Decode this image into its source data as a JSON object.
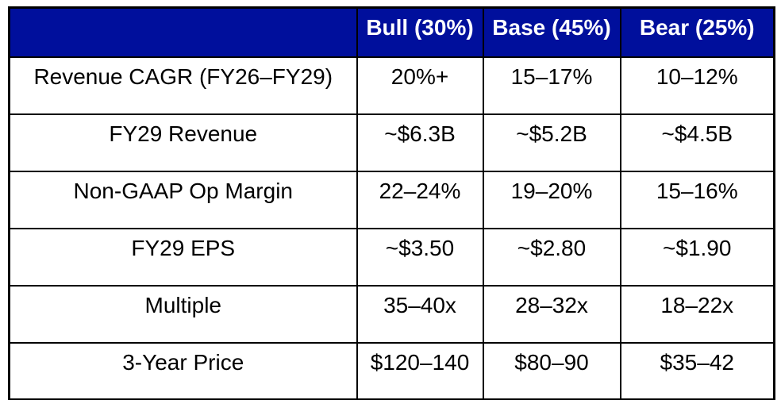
{
  "table": {
    "title": "Scenario valuation table",
    "colors": {
      "header_bg": "#000f9c",
      "header_text": "#ffffff",
      "border": "#000000",
      "body_text": "#000000",
      "page_bg": "#ffffff"
    },
    "header": {
      "corner": "",
      "columns": [
        "Bull (30%)",
        "Base (45%)",
        "Bear (25%)"
      ]
    },
    "rows": [
      {
        "label": "Revenue CAGR (FY26–FY29)",
        "values": [
          "20%+",
          "15–17%",
          "10–12%"
        ]
      },
      {
        "label": "FY29 Revenue",
        "values": [
          "~$6.3B",
          "~$5.2B",
          "~$4.5B"
        ]
      },
      {
        "label": "Non-GAAP Op Margin",
        "values": [
          "22–24%",
          "19–20%",
          "15–16%"
        ]
      },
      {
        "label": "FY29 EPS",
        "values": [
          "~$3.50",
          "~$2.80",
          "~$1.90"
        ]
      },
      {
        "label": "Multiple",
        "values": [
          "35–40x",
          "28–32x",
          "18–22x"
        ]
      },
      {
        "label": "3-Year Price",
        "values": [
          "$120–140",
          "$80–90",
          "$35–42"
        ]
      }
    ]
  },
  "chart_data": {
    "type": "table",
    "title": "Bull / Base / Bear scenario table",
    "columns": [
      "",
      "Bull (30%)",
      "Base (45%)",
      "Bear (25%)"
    ],
    "rows": [
      [
        "Revenue CAGR (FY26–FY29)",
        "20%+",
        "15–17%",
        "10–12%"
      ],
      [
        "FY29 Revenue",
        "~$6.3B",
        "~$5.2B",
        "~$4.5B"
      ],
      [
        "Non-GAAP Op Margin",
        "22–24%",
        "19–20%",
        "15–16%"
      ],
      [
        "FY29 EPS",
        "~$3.50",
        "~$2.80",
        "~$1.90"
      ],
      [
        "Multiple",
        "35–40x",
        "28–32x",
        "18–22x"
      ],
      [
        "3-Year Price",
        "$120–140",
        "$80–90",
        "$35–42"
      ]
    ]
  }
}
